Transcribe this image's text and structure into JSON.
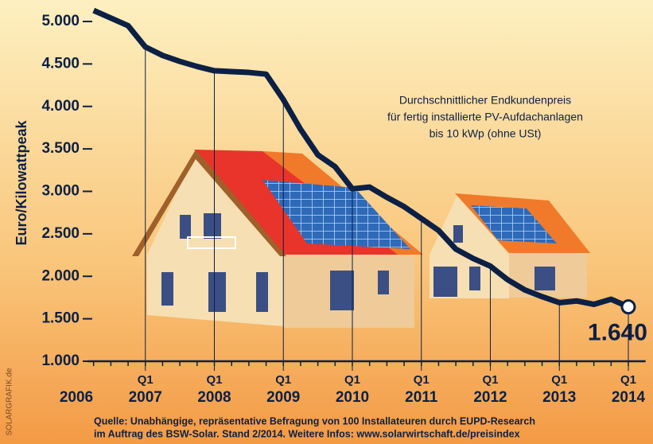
{
  "chart_data": {
    "type": "line",
    "y_label": "Euro/Kilowattpeak",
    "annotation": [
      "Durchschnittlicher Endkundenpreis",
      "für fertig installierte  PV-Aufdachanlagen",
      "bis 10 kWp (ohne USt)"
    ],
    "source": [
      "Quelle: Unabhängige, repräsentative Befragung von 100 Installateuren durch EUPD-Research",
      "im Auftrag des BSW-Solar. Stand 2/2014.     Weitere Infos: www.solarwirtschaft.de/preisindex"
    ],
    "credit": "SOLARGRAFIK.de",
    "x": [
      2006.25,
      2006.5,
      2006.75,
      2007,
      2007.25,
      2007.5,
      2007.75,
      2008,
      2008.25,
      2008.5,
      2008.75,
      2009,
      2009.25,
      2009.5,
      2009.75,
      2010,
      2010.25,
      2010.5,
      2010.75,
      2011,
      2011.25,
      2011.5,
      2011.75,
      2012,
      2012.25,
      2012.5,
      2012.75,
      2013,
      2013.25,
      2013.5,
      2013.75,
      2014
    ],
    "series": [
      {
        "color": "#0c2045",
        "values": [
          5130,
          5040,
          4950,
          4700,
          4600,
          4530,
          4470,
          4420,
          4410,
          4400,
          4380,
          4080,
          3730,
          3430,
          3290,
          3030,
          3050,
          2930,
          2820,
          2680,
          2540,
          2320,
          2210,
          2120,
          1960,
          1840,
          1760,
          1690,
          1710,
          1670,
          1730,
          1640
        ],
        "value_labels": [
          null,
          null,
          null,
          null,
          null,
          null,
          null,
          null,
          null,
          null,
          null,
          null,
          null,
          null,
          null,
          null,
          null,
          null,
          null,
          null,
          null,
          null,
          null,
          null,
          null,
          null,
          null,
          null,
          null,
          null,
          null,
          "1.640"
        ]
      }
    ],
    "xlim": [
      2006,
      2014.25
    ],
    "xticks": [
      {
        "value": 2006,
        "label": "2006"
      },
      {
        "value": 2007,
        "label": "2007",
        "quarter": "Q1"
      },
      {
        "value": 2008,
        "label": "2008",
        "quarter": "Q1"
      },
      {
        "value": 2009,
        "label": "2009",
        "quarter": "Q1"
      },
      {
        "value": 2010,
        "label": "2010",
        "quarter": "Q1"
      },
      {
        "value": 2011,
        "label": "2011",
        "quarter": "Q1"
      },
      {
        "value": 2012,
        "label": "2012",
        "quarter": "Q1"
      },
      {
        "value": 2013,
        "label": "2013",
        "quarter": "Q1"
      },
      {
        "value": 2014,
        "label": "2014",
        "quarter": "Q1"
      }
    ],
    "ylim": [
      1000,
      5000
    ],
    "yticks": [
      {
        "value": 1000,
        "label": "1.000"
      },
      {
        "value": 1500,
        "label": "1.500"
      },
      {
        "value": 2000,
        "label": "2.000"
      },
      {
        "value": 2500,
        "label": "2.500"
      },
      {
        "value": 3000,
        "label": "3.000"
      },
      {
        "value": 3500,
        "label": "3.500"
      },
      {
        "value": 4000,
        "label": "4.000"
      },
      {
        "value": 4500,
        "label": "4.500"
      },
      {
        "value": 5000,
        "label": "5.000"
      }
    ]
  }
}
